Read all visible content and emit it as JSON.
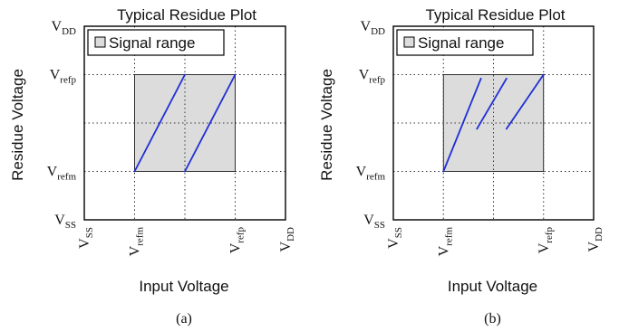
{
  "colors": {
    "residue_line": "#1f2fd6",
    "signal_range_fill": "#dcdcdc"
  },
  "chart_data": [
    {
      "type": "line",
      "panel": "a",
      "title": "Typical Residue Plot",
      "xlabel": "Input Voltage",
      "ylabel": "Residue Voltage",
      "legend": {
        "label": "Signal range",
        "placement": "top-left"
      },
      "caption": "(a)",
      "grid": true,
      "x_ticks": [
        {
          "main": "V",
          "sub": "SS",
          "pos": 0
        },
        {
          "main": "V",
          "sub": "refm",
          "pos": 1
        },
        {
          "main": "V",
          "sub": "refp",
          "pos": 3
        },
        {
          "main": "V",
          "sub": "DD",
          "pos": 4
        }
      ],
      "y_ticks": [
        {
          "main": "V",
          "sub": "SS",
          "pos": 0
        },
        {
          "main": "V",
          "sub": "refm",
          "pos": 1
        },
        {
          "main": "V",
          "sub": "refp",
          "pos": 3
        },
        {
          "main": "V",
          "sub": "DD",
          "pos": 4
        }
      ],
      "signal_range": {
        "x": [
          1,
          3
        ],
        "y": [
          1,
          3
        ]
      },
      "xlim": [
        0,
        4
      ],
      "ylim": [
        0,
        4
      ],
      "segments": [
        {
          "x": [
            1,
            2
          ],
          "y": [
            1,
            3
          ]
        },
        {
          "x": [
            2,
            3
          ],
          "y": [
            1,
            3
          ]
        }
      ]
    },
    {
      "type": "line",
      "panel": "b",
      "title": "Typical Residue Plot",
      "xlabel": "Input Voltage",
      "ylabel": "Residue Voltage",
      "legend": {
        "label": "Signal range",
        "placement": "top-left"
      },
      "caption": "(b)",
      "grid": true,
      "x_ticks": [
        {
          "main": "V",
          "sub": "SS",
          "pos": 0
        },
        {
          "main": "V",
          "sub": "refm",
          "pos": 1
        },
        {
          "main": "V",
          "sub": "refp",
          "pos": 3
        },
        {
          "main": "V",
          "sub": "DD",
          "pos": 4
        }
      ],
      "y_ticks": [
        {
          "main": "V",
          "sub": "SS",
          "pos": 0
        },
        {
          "main": "V",
          "sub": "refm",
          "pos": 1
        },
        {
          "main": "V",
          "sub": "refp",
          "pos": 3
        },
        {
          "main": "V",
          "sub": "DD",
          "pos": 4
        }
      ],
      "signal_range": {
        "x": [
          1,
          3
        ],
        "y": [
          1,
          3
        ]
      },
      "xlim": [
        0,
        4
      ],
      "ylim": [
        0,
        4
      ],
      "segments": [
        {
          "x": [
            1,
            1.75
          ],
          "y": [
            1,
            2.92
          ]
        },
        {
          "x": [
            1.67,
            2.26
          ],
          "y": [
            1.88,
            2.92
          ]
        },
        {
          "x": [
            2.26,
            3
          ],
          "y": [
            1.88,
            3
          ]
        }
      ]
    }
  ]
}
